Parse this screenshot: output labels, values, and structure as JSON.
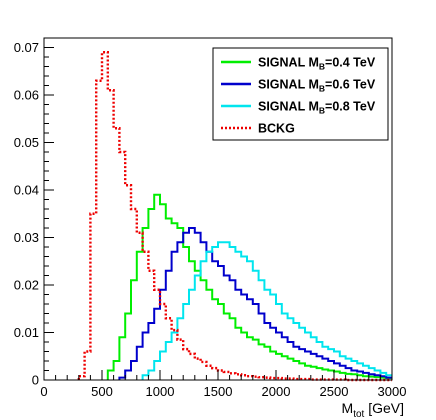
{
  "chart_data": {
    "type": "line",
    "xlabel": "M",
    "xlabel_sub": "tot",
    "xlabel_unit": " [GeV]",
    "ylabel": "",
    "xlim": [
      0,
      3000
    ],
    "ylim": [
      0,
      0.072
    ],
    "bin_width": 50,
    "x_ticks": [
      0,
      500,
      1000,
      1500,
      2000,
      2500,
      3000
    ],
    "x_tick_labels": [
      "0",
      "500",
      "1000",
      "1500",
      "2000",
      "2500",
      "3000"
    ],
    "y_ticks": [
      0,
      0.01,
      0.02,
      0.03,
      0.04,
      0.05,
      0.06,
      0.07
    ],
    "y_tick_labels": [
      "0",
      "0.01",
      "0.02",
      "0.03",
      "0.04",
      "0.05",
      "0.06",
      "0.07"
    ],
    "grid": false,
    "legend_position": "top-right",
    "series": [
      {
        "name": "SIGNAL",
        "legend_sub": "B",
        "legend_suffix": "=0.4 TeV",
        "color": "#00ee00",
        "style": "solid-step",
        "x": [
          550,
          600,
          650,
          700,
          750,
          800,
          850,
          900,
          950,
          1000,
          1050,
          1100,
          1150,
          1200,
          1250,
          1300,
          1350,
          1400,
          1450,
          1500,
          1550,
          1600,
          1650,
          1700,
          1750,
          1800,
          1850,
          1900,
          1950,
          2000,
          2050,
          2100,
          2150,
          2200,
          2250,
          2300,
          2350,
          2400,
          2450,
          2500,
          2550,
          2600,
          2650,
          2700,
          2750,
          2800,
          2850,
          2900,
          2950
        ],
        "values": [
          0.002,
          0.004,
          0.009,
          0.014,
          0.021,
          0.027,
          0.032,
          0.036,
          0.039,
          0.037,
          0.034,
          0.033,
          0.032,
          0.028,
          0.025,
          0.023,
          0.021,
          0.019,
          0.017,
          0.016,
          0.014,
          0.013,
          0.011,
          0.01,
          0.009,
          0.0085,
          0.0075,
          0.007,
          0.006,
          0.0055,
          0.005,
          0.0045,
          0.004,
          0.0035,
          0.003,
          0.0028,
          0.0025,
          0.0022,
          0.002,
          0.0018,
          0.0015,
          0.0013,
          0.0012,
          0.001,
          0.0008,
          0.0007,
          0.0006,
          0.0005,
          0.0004
        ]
      },
      {
        "name": "SIGNAL",
        "legend_sub": "B",
        "legend_suffix": "=0.6 TeV",
        "color": "#0000cc",
        "style": "solid-step",
        "x": [
          650,
          700,
          750,
          800,
          850,
          900,
          950,
          1000,
          1050,
          1100,
          1150,
          1200,
          1250,
          1300,
          1350,
          1400,
          1450,
          1500,
          1550,
          1600,
          1650,
          1700,
          1750,
          1800,
          1850,
          1900,
          1950,
          2000,
          2050,
          2100,
          2150,
          2200,
          2250,
          2300,
          2350,
          2400,
          2450,
          2500,
          2550,
          2600,
          2650,
          2700,
          2750,
          2800,
          2850,
          2900,
          2950
        ],
        "values": [
          0.0005,
          0.002,
          0.004,
          0.007,
          0.01,
          0.012,
          0.015,
          0.019,
          0.023,
          0.027,
          0.029,
          0.031,
          0.032,
          0.031,
          0.029,
          0.027,
          0.025,
          0.024,
          0.022,
          0.021,
          0.019,
          0.018,
          0.017,
          0.016,
          0.014,
          0.012,
          0.011,
          0.01,
          0.009,
          0.008,
          0.007,
          0.0065,
          0.006,
          0.0055,
          0.005,
          0.0045,
          0.004,
          0.0035,
          0.003,
          0.0025,
          0.002,
          0.0018,
          0.0015,
          0.0012,
          0.001,
          0.0008,
          0.0005
        ]
      },
      {
        "name": "SIGNAL",
        "legend_sub": "B",
        "legend_suffix": "=0.8 TeV",
        "color": "#00e5ee",
        "style": "solid-step",
        "x": [
          850,
          900,
          950,
          1000,
          1050,
          1100,
          1150,
          1200,
          1250,
          1300,
          1350,
          1400,
          1450,
          1500,
          1550,
          1600,
          1650,
          1700,
          1750,
          1800,
          1850,
          1900,
          1950,
          2000,
          2050,
          2100,
          2150,
          2200,
          2250,
          2300,
          2350,
          2400,
          2450,
          2500,
          2550,
          2600,
          2650,
          2700,
          2750,
          2800,
          2850,
          2900,
          2950
        ],
        "values": [
          0.001,
          0.002,
          0.004,
          0.006,
          0.008,
          0.01,
          0.013,
          0.016,
          0.019,
          0.022,
          0.025,
          0.027,
          0.028,
          0.029,
          0.029,
          0.028,
          0.027,
          0.026,
          0.025,
          0.023,
          0.021,
          0.019,
          0.018,
          0.016,
          0.014,
          0.013,
          0.012,
          0.011,
          0.01,
          0.009,
          0.008,
          0.007,
          0.0065,
          0.006,
          0.005,
          0.0045,
          0.004,
          0.0035,
          0.003,
          0.0025,
          0.002,
          0.0015,
          0.001
        ]
      },
      {
        "name": "BCKG",
        "color": "#ee0000",
        "style": "dotted-step",
        "x": [
          300,
          350,
          400,
          450,
          500,
          550,
          600,
          650,
          700,
          750,
          800,
          850,
          900,
          950,
          1000,
          1050,
          1100,
          1150,
          1200,
          1250,
          1300,
          1350,
          1400,
          1450,
          1500,
          1550,
          1600,
          1650,
          1700,
          1750,
          1800,
          1850,
          1900,
          1950,
          2000,
          2050,
          2100,
          2150,
          2200,
          2250,
          2300,
          2350,
          2400,
          2450,
          2500,
          2550,
          2600,
          2650,
          2700,
          2750,
          2800,
          2850,
          2900,
          2950
        ],
        "values": [
          0.0008,
          0.006,
          0.035,
          0.063,
          0.069,
          0.061,
          0.053,
          0.048,
          0.041,
          0.036,
          0.031,
          0.027,
          0.023,
          0.019,
          0.016,
          0.013,
          0.0105,
          0.0085,
          0.0065,
          0.0055,
          0.0045,
          0.0038,
          0.003,
          0.0025,
          0.002,
          0.0017,
          0.0014,
          0.0012,
          0.001,
          0.0008,
          0.0007,
          0.0006,
          0.0005,
          0.0004,
          0.0004,
          0.0003,
          0.0003,
          0.0002,
          0.0002,
          0.0002,
          0.0001,
          0.0001,
          0.0001,
          0.0001,
          0.0001,
          0.0001,
          0.0,
          0.0,
          0.0,
          0.0,
          0.0,
          0.0,
          0.0,
          0.0
        ]
      }
    ]
  }
}
